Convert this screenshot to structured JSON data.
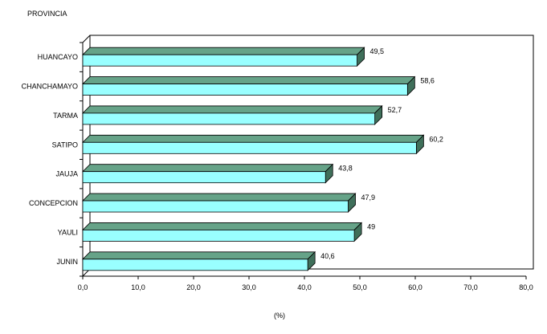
{
  "chart_data": {
    "type": "bar",
    "orientation": "horizontal",
    "style": "3d",
    "title": "",
    "ylabel": "PROVINCIA",
    "xlabel": "(%)",
    "categories": [
      "HUANCAYO",
      "CHANCHAMAYO",
      "TARMA",
      "SATIPO",
      "JAUJA",
      "CONCEPCION",
      "YAULI",
      "JUNIN"
    ],
    "values": [
      49.5,
      58.6,
      52.7,
      60.2,
      43.8,
      47.9,
      49,
      40.6
    ],
    "value_labels": [
      "49,5",
      "58,6",
      "52,7",
      "60,2",
      "43,8",
      "47,9",
      "49",
      "40,6"
    ],
    "xlim": [
      0,
      80
    ],
    "xticks": [
      0,
      10,
      20,
      30,
      40,
      50,
      60,
      70,
      80
    ],
    "xtick_labels": [
      "0,0",
      "10,0",
      "20,0",
      "30,0",
      "40,0",
      "50,0",
      "60,0",
      "70,0",
      "80,0"
    ],
    "grid": false,
    "legend": "none",
    "colors": {
      "bar_front": "#99FFFF",
      "bar_top": "#66A388",
      "bar_side": "#3F6F5A",
      "bar_outline": "#000000",
      "plot_background": "#FFFFFF",
      "axis": "#000000"
    }
  }
}
